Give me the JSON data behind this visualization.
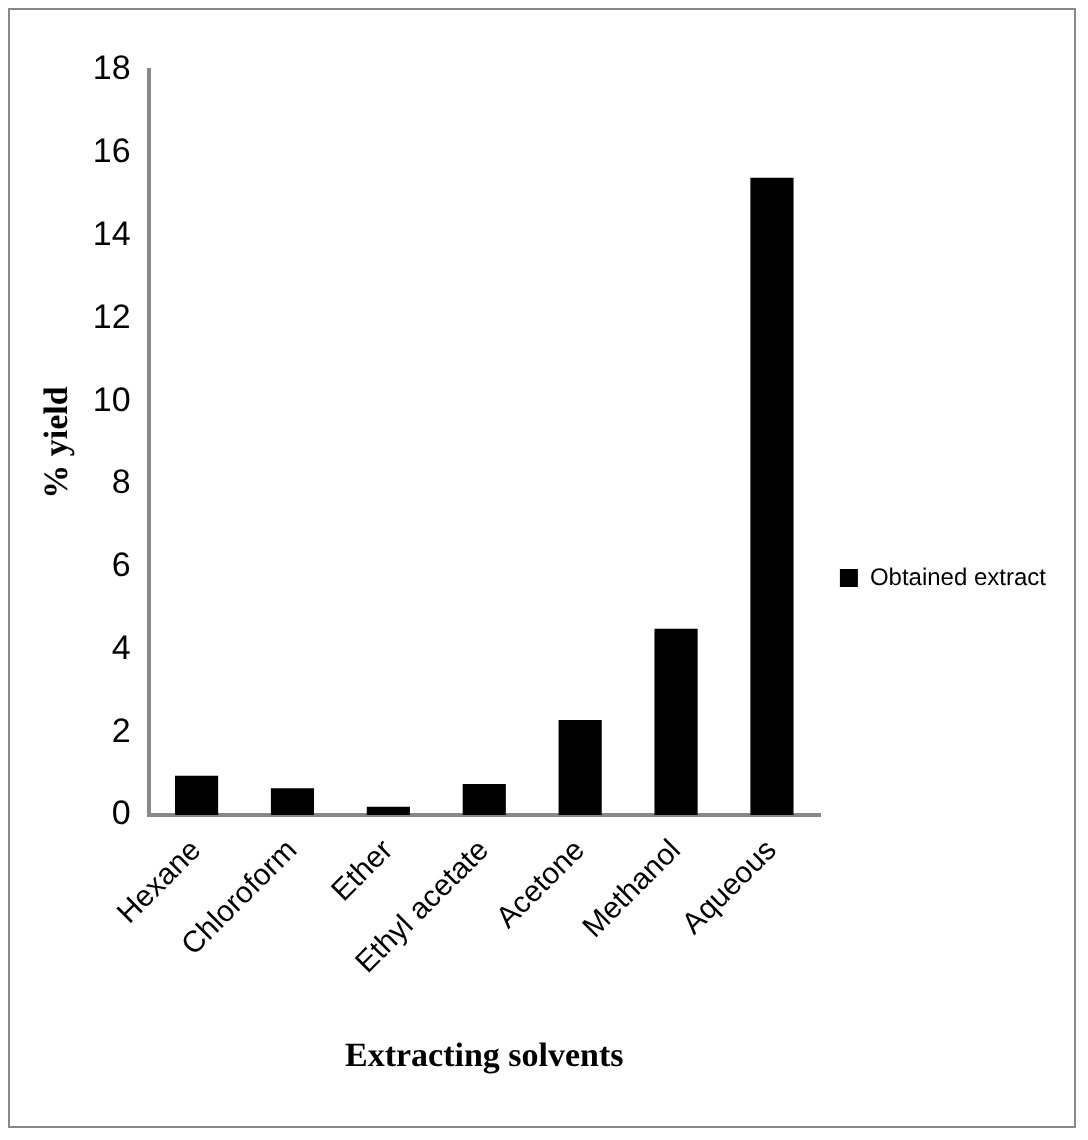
{
  "chart_data": {
    "type": "bar",
    "xlabel": "Extracting solvents",
    "ylabel": "% yield",
    "categories": [
      "Hexane",
      "Chloroform",
      "Ether",
      "Ethyl acetate",
      "Acetone",
      "Methanol",
      "Aqueous"
    ],
    "series": [
      {
        "name": "Obtained extract",
        "color": "#000000",
        "values": [
          0.95,
          0.65,
          0.2,
          0.75,
          2.3,
          4.5,
          15.4
        ]
      }
    ],
    "ylim": [
      0,
      18
    ],
    "yticks": [
      0,
      2,
      4,
      6,
      8,
      10,
      12,
      14,
      16,
      18
    ],
    "grid": false,
    "legend": "right"
  }
}
